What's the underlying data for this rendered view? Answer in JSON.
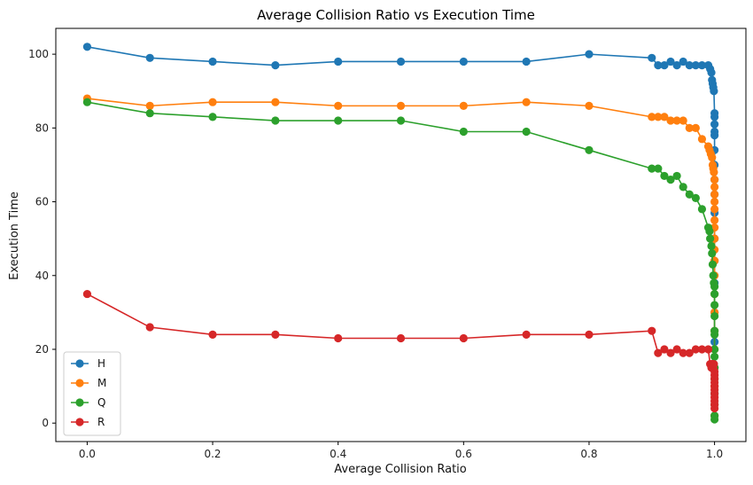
{
  "chart_data": {
    "type": "line",
    "title": "Average Collision Ratio vs Execution Time",
    "xlabel": "Average Collision Ratio",
    "ylabel": "Execution Time",
    "xlim": [
      -0.05,
      1.05
    ],
    "ylim": [
      -5,
      107
    ],
    "xticks": [
      0.0,
      0.2,
      0.4,
      0.6,
      0.8,
      1.0
    ],
    "xtick_labels": [
      "0.0",
      "0.2",
      "0.4",
      "0.6",
      "0.8",
      "1.0"
    ],
    "yticks": [
      0,
      20,
      40,
      60,
      80,
      100
    ],
    "ytick_labels": [
      "0",
      "20",
      "40",
      "60",
      "80",
      "100"
    ],
    "grid": false,
    "legend": "lower-left",
    "series": [
      {
        "name": "H",
        "color": "#1f77b4",
        "points": [
          [
            0.0,
            102
          ],
          [
            0.1,
            99
          ],
          [
            0.2,
            98
          ],
          [
            0.3,
            97
          ],
          [
            0.4,
            98
          ],
          [
            0.5,
            98
          ],
          [
            0.6,
            98
          ],
          [
            0.7,
            98
          ],
          [
            0.8,
            100
          ],
          [
            0.9,
            99
          ],
          [
            0.91,
            97
          ],
          [
            0.92,
            97
          ],
          [
            0.93,
            98
          ],
          [
            0.94,
            97
          ],
          [
            0.95,
            98
          ],
          [
            0.96,
            97
          ],
          [
            0.97,
            97
          ],
          [
            0.98,
            97
          ],
          [
            0.99,
            97
          ],
          [
            0.993,
            96
          ],
          [
            0.995,
            95
          ],
          [
            0.996,
            93
          ],
          [
            0.997,
            92
          ],
          [
            0.998,
            91
          ],
          [
            0.999,
            90
          ],
          [
            1.0,
            84
          ],
          [
            1.0,
            83
          ],
          [
            1.0,
            81
          ],
          [
            1.0,
            79
          ],
          [
            1.0,
            78
          ],
          [
            1.0,
            74
          ],
          [
            1.0,
            70
          ],
          [
            1.0,
            66
          ],
          [
            1.0,
            62
          ],
          [
            1.0,
            57
          ],
          [
            1.0,
            50
          ],
          [
            1.0,
            44
          ],
          [
            1.0,
            38
          ],
          [
            1.0,
            30
          ],
          [
            1.0,
            22
          ],
          [
            1.0,
            15
          ],
          [
            1.0,
            8
          ],
          [
            1.0,
            2
          ]
        ]
      },
      {
        "name": "M",
        "color": "#ff7f0e",
        "points": [
          [
            0.0,
            88
          ],
          [
            0.1,
            86
          ],
          [
            0.2,
            87
          ],
          [
            0.3,
            87
          ],
          [
            0.4,
            86
          ],
          [
            0.5,
            86
          ],
          [
            0.6,
            86
          ],
          [
            0.7,
            87
          ],
          [
            0.8,
            86
          ],
          [
            0.9,
            83
          ],
          [
            0.91,
            83
          ],
          [
            0.92,
            83
          ],
          [
            0.93,
            82
          ],
          [
            0.94,
            82
          ],
          [
            0.95,
            82
          ],
          [
            0.96,
            80
          ],
          [
            0.97,
            80
          ],
          [
            0.98,
            77
          ],
          [
            0.99,
            75
          ],
          [
            0.992,
            74
          ],
          [
            0.994,
            73
          ],
          [
            0.996,
            72
          ],
          [
            0.997,
            70
          ],
          [
            0.998,
            69
          ],
          [
            0.999,
            68
          ],
          [
            1.0,
            66
          ],
          [
            1.0,
            64
          ],
          [
            1.0,
            62
          ],
          [
            1.0,
            60
          ],
          [
            1.0,
            58
          ],
          [
            1.0,
            55
          ],
          [
            1.0,
            53
          ],
          [
            1.0,
            50
          ],
          [
            1.0,
            47
          ],
          [
            1.0,
            44
          ],
          [
            1.0,
            40
          ],
          [
            1.0,
            35
          ],
          [
            1.0,
            30
          ],
          [
            1.0,
            25
          ],
          [
            1.0,
            20
          ],
          [
            1.0,
            15
          ],
          [
            1.0,
            10
          ],
          [
            1.0,
            5
          ],
          [
            1.0,
            2
          ]
        ]
      },
      {
        "name": "Q",
        "color": "#2ca02c",
        "points": [
          [
            0.0,
            87
          ],
          [
            0.1,
            84
          ],
          [
            0.2,
            83
          ],
          [
            0.3,
            82
          ],
          [
            0.4,
            82
          ],
          [
            0.5,
            82
          ],
          [
            0.6,
            79
          ],
          [
            0.7,
            79
          ],
          [
            0.8,
            74
          ],
          [
            0.9,
            69
          ],
          [
            0.91,
            69
          ],
          [
            0.92,
            67
          ],
          [
            0.93,
            66
          ],
          [
            0.94,
            67
          ],
          [
            0.95,
            64
          ],
          [
            0.96,
            62
          ],
          [
            0.97,
            61
          ],
          [
            0.98,
            58
          ],
          [
            0.99,
            53
          ],
          [
            0.992,
            52
          ],
          [
            0.993,
            50
          ],
          [
            0.995,
            48
          ],
          [
            0.996,
            46
          ],
          [
            0.997,
            43
          ],
          [
            0.998,
            40
          ],
          [
            0.999,
            38
          ],
          [
            1.0,
            37
          ],
          [
            1.0,
            35
          ],
          [
            1.0,
            32
          ],
          [
            1.0,
            29
          ],
          [
            1.0,
            25
          ],
          [
            1.0,
            24
          ],
          [
            1.0,
            20
          ],
          [
            1.0,
            18
          ],
          [
            1.0,
            15
          ],
          [
            1.0,
            12
          ],
          [
            1.0,
            8
          ],
          [
            1.0,
            5
          ],
          [
            1.0,
            2
          ],
          [
            1.0,
            1
          ]
        ]
      },
      {
        "name": "R",
        "color": "#d62728",
        "points": [
          [
            0.0,
            35
          ],
          [
            0.1,
            26
          ],
          [
            0.2,
            24
          ],
          [
            0.3,
            24
          ],
          [
            0.4,
            23
          ],
          [
            0.5,
            23
          ],
          [
            0.6,
            23
          ],
          [
            0.7,
            24
          ],
          [
            0.8,
            24
          ],
          [
            0.9,
            25
          ],
          [
            0.91,
            19
          ],
          [
            0.92,
            20
          ],
          [
            0.93,
            19
          ],
          [
            0.94,
            20
          ],
          [
            0.95,
            19
          ],
          [
            0.96,
            19
          ],
          [
            0.97,
            20
          ],
          [
            0.98,
            20
          ],
          [
            0.99,
            20
          ],
          [
            0.993,
            16
          ],
          [
            0.995,
            15
          ],
          [
            0.996,
            16
          ],
          [
            0.997,
            16
          ],
          [
            0.998,
            15
          ],
          [
            0.999,
            16
          ],
          [
            1.0,
            14
          ],
          [
            1.0,
            13
          ],
          [
            1.0,
            12
          ],
          [
            1.0,
            11
          ],
          [
            1.0,
            10
          ],
          [
            1.0,
            9
          ],
          [
            1.0,
            8
          ],
          [
            1.0,
            7
          ],
          [
            1.0,
            6
          ],
          [
            1.0,
            5
          ],
          [
            1.0,
            4
          ]
        ]
      }
    ]
  }
}
